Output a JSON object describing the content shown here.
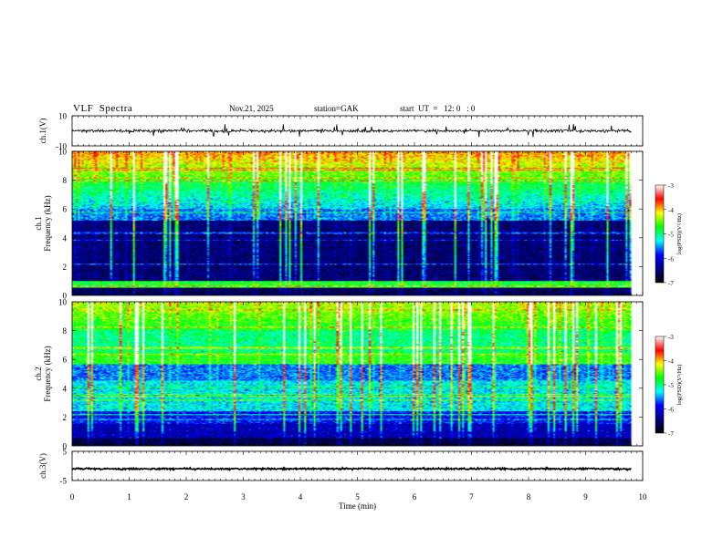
{
  "header": {
    "title": "VLF  Spectra",
    "date": "Nov.21, 2025",
    "station": "station=GAK",
    "start": "start  UT  =   12: 0   : 0"
  },
  "chart_data": [
    {
      "type": "line",
      "name": "ch1-waveform",
      "ylabel": "ch.1(V)",
      "ylim": [
        -10,
        10
      ],
      "yticks": [
        "10",
        "-10"
      ],
      "xlim": [
        0,
        10
      ],
      "baseline": 0
    },
    {
      "type": "heatmap",
      "name": "ch1-spectrogram",
      "ylabel": "ch.1\nFrequency  (kHz)",
      "ylabel_lines": [
        "ch.1",
        "Frequency  (kHz)"
      ],
      "ylim": [
        0,
        10
      ],
      "yticks": [
        "0",
        "2",
        "4",
        "6",
        "8",
        "10"
      ],
      "xlim": [
        0,
        10
      ],
      "data_end_min": 9.8,
      "colorbar": {
        "label": "log(PSD)(V²/Hz)",
        "range": [
          -7,
          -3
        ],
        "ticks": [
          "-3",
          "-4",
          "-5",
          "-6",
          "-7"
        ],
        "colors": [
          "#ffffff",
          "#ff0000",
          "#ffff00",
          "#00ff00",
          "#00ffff",
          "#0000ff",
          "#000080",
          "#000000"
        ]
      }
    },
    {
      "type": "heatmap",
      "name": "ch2-spectrogram",
      "ylabel": "ch.2\nFrequency  (kHz)",
      "ylabel_lines": [
        "ch.2",
        "Frequency  (kHz)"
      ],
      "ylim": [
        0,
        10
      ],
      "yticks": [
        "0",
        "2",
        "4",
        "6",
        "8",
        "10"
      ],
      "xlim": [
        0,
        10
      ],
      "data_end_min": 9.8,
      "colorbar": {
        "label": "log(PSD)(V²/Hz)",
        "range": [
          -7,
          -3
        ],
        "ticks": [
          "-3",
          "-4",
          "-5",
          "-6",
          "-7"
        ],
        "colors": [
          "#ffffff",
          "#ff0000",
          "#ffff00",
          "#00ff00",
          "#00ffff",
          "#0000ff",
          "#000080",
          "#000000"
        ]
      }
    },
    {
      "type": "line",
      "name": "ch3-waveform",
      "ylabel": "ch.3(V)",
      "ylim": [
        -5,
        5
      ],
      "yticks": [
        "5",
        "-5"
      ],
      "xlim": [
        0,
        10
      ],
      "baseline": -1
    }
  ],
  "xaxis": {
    "label": "Time  (min)",
    "ticks": [
      "0",
      "1",
      "2",
      "3",
      "4",
      "5",
      "6",
      "7",
      "8",
      "9",
      "10"
    ]
  }
}
